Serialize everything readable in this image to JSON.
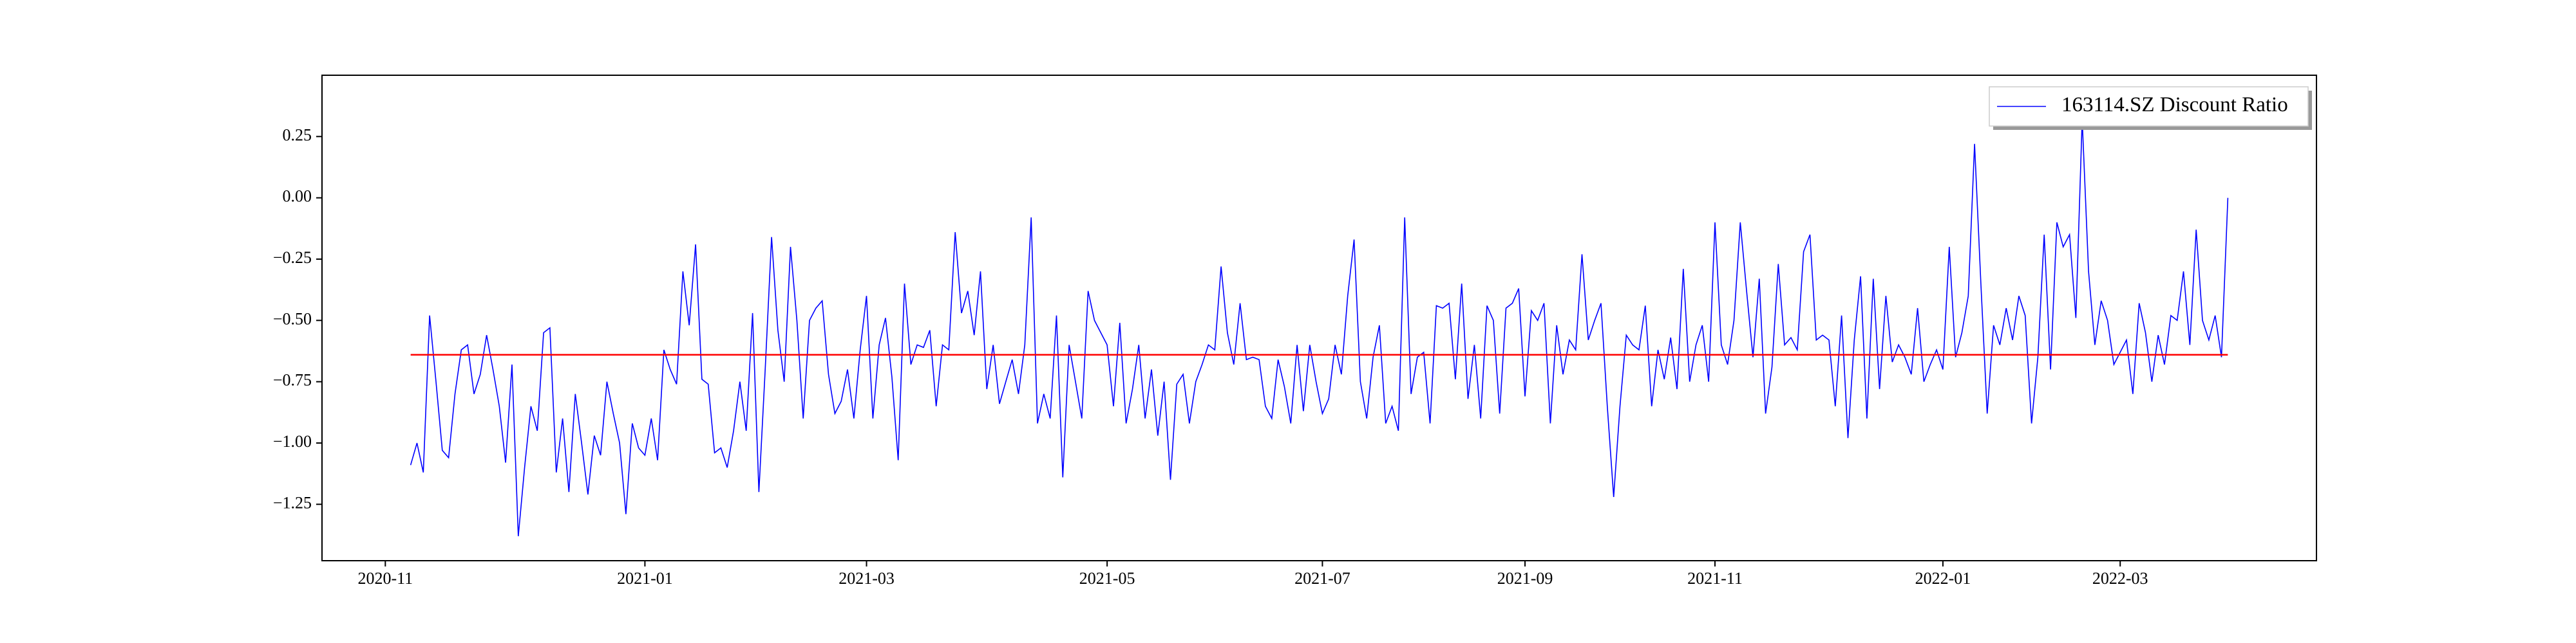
{
  "chart_data": {
    "type": "line",
    "series": [
      {
        "name": "163114.SZ Discount Ratio",
        "color": "blue",
        "values": [
          -1.09,
          -1.0,
          -1.12,
          -0.48,
          -0.75,
          -1.03,
          -1.06,
          -0.8,
          -0.62,
          -0.6,
          -0.8,
          -0.72,
          -0.56,
          -0.7,
          -0.85,
          -1.08,
          -0.68,
          -1.38,
          -1.1,
          -0.85,
          -0.95,
          -0.55,
          -0.53,
          -1.12,
          -0.9,
          -1.2,
          -0.8,
          -1.0,
          -1.21,
          -0.97,
          -1.05,
          -0.75,
          -0.88,
          -1.0,
          -1.29,
          -0.92,
          -1.02,
          -1.05,
          -0.9,
          -1.07,
          -0.62,
          -0.7,
          -0.76,
          -0.3,
          -0.52,
          -0.19,
          -0.74,
          -0.76,
          -1.04,
          -1.02,
          -1.1,
          -0.95,
          -0.75,
          -0.95,
          -0.47,
          -1.2,
          -0.7,
          -0.16,
          -0.54,
          -0.75,
          -0.2,
          -0.5,
          -0.9,
          -0.5,
          -0.45,
          -0.42,
          -0.72,
          -0.88,
          -0.83,
          -0.7,
          -0.9,
          -0.62,
          -0.4,
          -0.9,
          -0.6,
          -0.49,
          -0.73,
          -1.07,
          -0.35,
          -0.68,
          -0.6,
          -0.61,
          -0.54,
          -0.85,
          -0.6,
          -0.62,
          -0.14,
          -0.47,
          -0.38,
          -0.56,
          -0.3,
          -0.78,
          -0.6,
          -0.84,
          -0.75,
          -0.66,
          -0.8,
          -0.6,
          -0.08,
          -0.92,
          -0.8,
          -0.9,
          -0.48,
          -1.14,
          -0.6,
          -0.75,
          -0.9,
          -0.38,
          -0.5,
          -0.55,
          -0.6,
          -0.85,
          -0.51,
          -0.92,
          -0.78,
          -0.6,
          -0.9,
          -0.7,
          -0.97,
          -0.75,
          -1.15,
          -0.76,
          -0.72,
          -0.92,
          -0.75,
          -0.68,
          -0.6,
          -0.62,
          -0.28,
          -0.55,
          -0.68,
          -0.43,
          -0.66,
          -0.65,
          -0.66,
          -0.85,
          -0.9,
          -0.66,
          -0.77,
          -0.92,
          -0.6,
          -0.87,
          -0.6,
          -0.75,
          -0.88,
          -0.82,
          -0.6,
          -0.72,
          -0.4,
          -0.17,
          -0.75,
          -0.9,
          -0.65,
          -0.52,
          -0.92,
          -0.85,
          -0.95,
          -0.08,
          -0.8,
          -0.65,
          -0.63,
          -0.92,
          -0.44,
          -0.45,
          -0.43,
          -0.74,
          -0.35,
          -0.82,
          -0.6,
          -0.9,
          -0.44,
          -0.5,
          -0.88,
          -0.45,
          -0.43,
          -0.37,
          -0.81,
          -0.46,
          -0.5,
          -0.43,
          -0.92,
          -0.52,
          -0.72,
          -0.58,
          -0.62,
          -0.23,
          -0.58,
          -0.5,
          -0.43,
          -0.85,
          -1.22,
          -0.85,
          -0.56,
          -0.6,
          -0.62,
          -0.44,
          -0.85,
          -0.62,
          -0.74,
          -0.57,
          -0.78,
          -0.29,
          -0.75,
          -0.6,
          -0.52,
          -0.75,
          -0.1,
          -0.6,
          -0.68,
          -0.5,
          -0.1,
          -0.38,
          -0.65,
          -0.33,
          -0.88,
          -0.69,
          -0.27,
          -0.6,
          -0.57,
          -0.62,
          -0.22,
          -0.15,
          -0.58,
          -0.56,
          -0.58,
          -0.85,
          -0.48,
          -0.98,
          -0.58,
          -0.32,
          -0.9,
          -0.33,
          -0.78,
          -0.4,
          -0.67,
          -0.6,
          -0.65,
          -0.72,
          -0.45,
          -0.75,
          -0.68,
          -0.62,
          -0.7,
          -0.2,
          -0.65,
          -0.55,
          -0.4,
          0.22,
          -0.35,
          -0.88,
          -0.52,
          -0.6,
          -0.45,
          -0.58,
          -0.4,
          -0.48,
          -0.92,
          -0.65,
          -0.15,
          -0.7,
          -0.1,
          -0.2,
          -0.15,
          -0.49,
          0.32,
          -0.3,
          -0.6,
          -0.42,
          -0.5,
          -0.68,
          -0.63,
          -0.58,
          -0.8,
          -0.43,
          -0.55,
          -0.75,
          -0.56,
          -0.68,
          -0.48,
          -0.5,
          -0.3,
          -0.6,
          -0.13,
          -0.5,
          -0.58,
          -0.48,
          -0.65,
          0.0
        ]
      }
    ],
    "reference_line": {
      "value": -0.64,
      "color": "red"
    },
    "xlim": [
      -14,
      301
    ],
    "xticks": [
      {
        "value": -4,
        "label": "2020-11"
      },
      {
        "value": 37,
        "label": "2021-01"
      },
      {
        "value": 72,
        "label": "2021-03"
      },
      {
        "value": 110,
        "label": "2021-05"
      },
      {
        "value": 144,
        "label": "2021-07"
      },
      {
        "value": 176,
        "label": "2021-09"
      },
      {
        "value": 206,
        "label": "2021-11"
      },
      {
        "value": 242,
        "label": "2022-01"
      },
      {
        "value": 270,
        "label": "2022-03"
      }
    ],
    "ylim": [
      -1.48,
      0.5
    ],
    "yticks": [
      {
        "value": -1.25,
        "label": "−1.25"
      },
      {
        "value": -1.0,
        "label": "−1.00"
      },
      {
        "value": -0.75,
        "label": "−0.75"
      },
      {
        "value": -0.5,
        "label": "−0.50"
      },
      {
        "value": -0.25,
        "label": "−0.25"
      },
      {
        "value": 0,
        "label": "0.00"
      },
      {
        "value": 0.25,
        "label": "0.25"
      }
    ],
    "legend": "upper right"
  }
}
